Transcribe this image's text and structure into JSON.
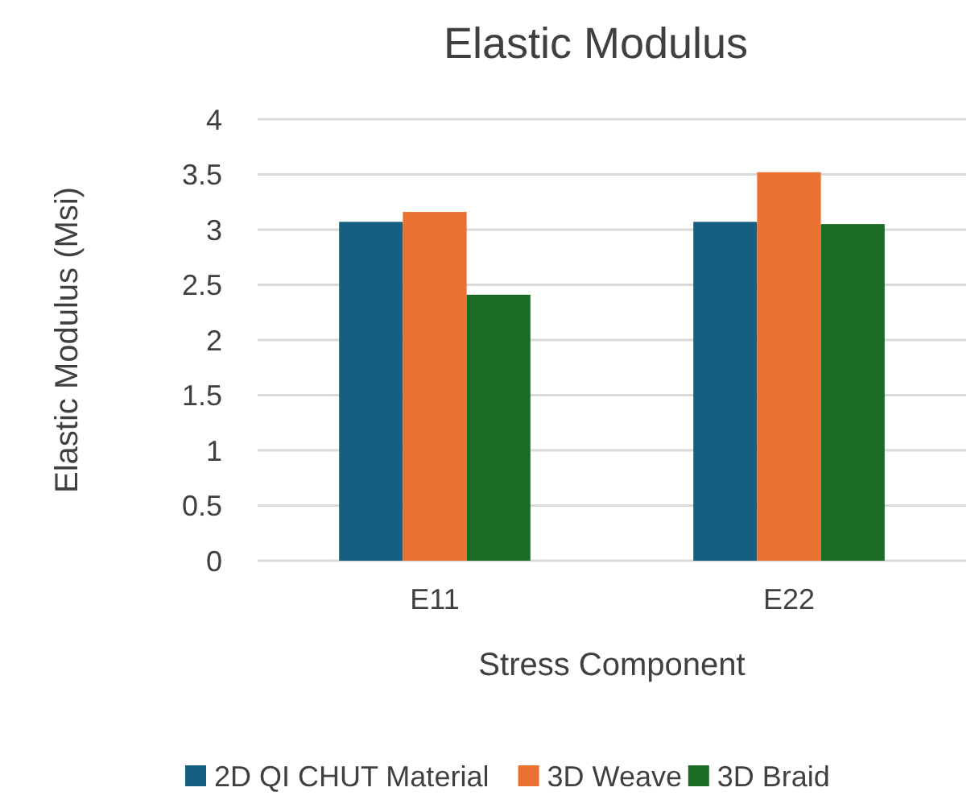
{
  "chart_data": {
    "type": "bar",
    "title": "Elastic Modulus",
    "xlabel": "Stress Component",
    "ylabel": "Elastic Modulus (Msi)",
    "categories": [
      "E11",
      "E22"
    ],
    "series": [
      {
        "name": "2D QI CHUT Material",
        "color": "#175f80",
        "values": [
          3.07,
          3.07
        ]
      },
      {
        "name": "3D Weave",
        "color": "#e97132",
        "values": [
          3.16,
          3.52
        ]
      },
      {
        "name": "3D Braid",
        "color": "#1b6b24",
        "values": [
          2.41,
          3.05
        ]
      }
    ],
    "ylim": [
      0,
      4
    ],
    "yticks": [
      0,
      {
        "value": 0.5,
        "label": "0.5"
      },
      1,
      {
        "value": 1.5,
        "label": "1.5"
      },
      2,
      {
        "value": 2.5,
        "label": "2.5"
      },
      3,
      {
        "value": 3.5,
        "label": "3.5"
      },
      4
    ],
    "grid": "y",
    "legend": "bottom"
  }
}
